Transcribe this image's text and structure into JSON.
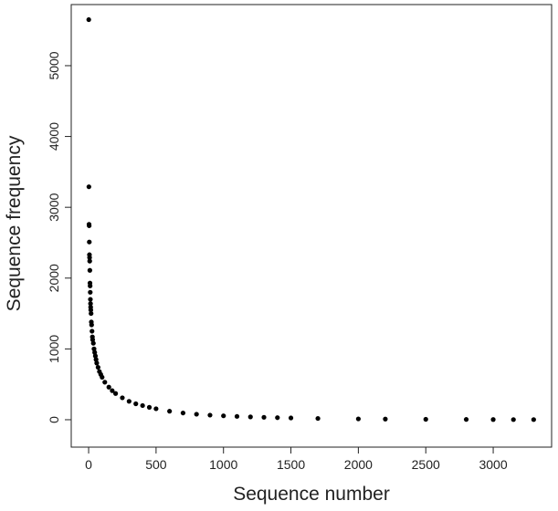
{
  "chart_data": {
    "type": "scatter",
    "x_label": "Sequence number",
    "y_label": "Sequence frequency",
    "series": [
      {
        "color": "#000000",
        "x": [
          1,
          2,
          3,
          4,
          5,
          6,
          7,
          8,
          9,
          10,
          11,
          12,
          13,
          14,
          15,
          16,
          18,
          20,
          22,
          25,
          28,
          30,
          35,
          40,
          45,
          50,
          55,
          60,
          70,
          80,
          90,
          100,
          120,
          150,
          175,
          200,
          250,
          300,
          350,
          400,
          450,
          500,
          600,
          700,
          800,
          900,
          1000,
          1100,
          1200,
          1300,
          1400,
          1500,
          1700,
          2000,
          2200,
          2500,
          2800,
          3000,
          3150,
          3300
        ],
        "values": [
          5650,
          3290,
          2760,
          2740,
          2510,
          2330,
          2290,
          2240,
          2110,
          1930,
          1890,
          1800,
          1700,
          1640,
          1590,
          1550,
          1500,
          1380,
          1340,
          1250,
          1170,
          1130,
          1080,
          1000,
          950,
          900,
          850,
          800,
          740,
          680,
          640,
          600,
          530,
          460,
          410,
          370,
          310,
          260,
          225,
          200,
          175,
          155,
          120,
          95,
          78,
          65,
          55,
          47,
          40,
          34,
          29,
          25,
          18,
          12,
          9,
          6,
          4,
          3,
          2,
          2
        ]
      }
    ],
    "xlim": [
      -129,
      3433
    ],
    "xticks": [
      0,
      500,
      1000,
      1500,
      2000,
      2500,
      3000
    ],
    "ylim": [
      -387,
      5863
    ],
    "yticks": [
      0,
      1000,
      2000,
      3000,
      4000,
      5000
    ]
  }
}
